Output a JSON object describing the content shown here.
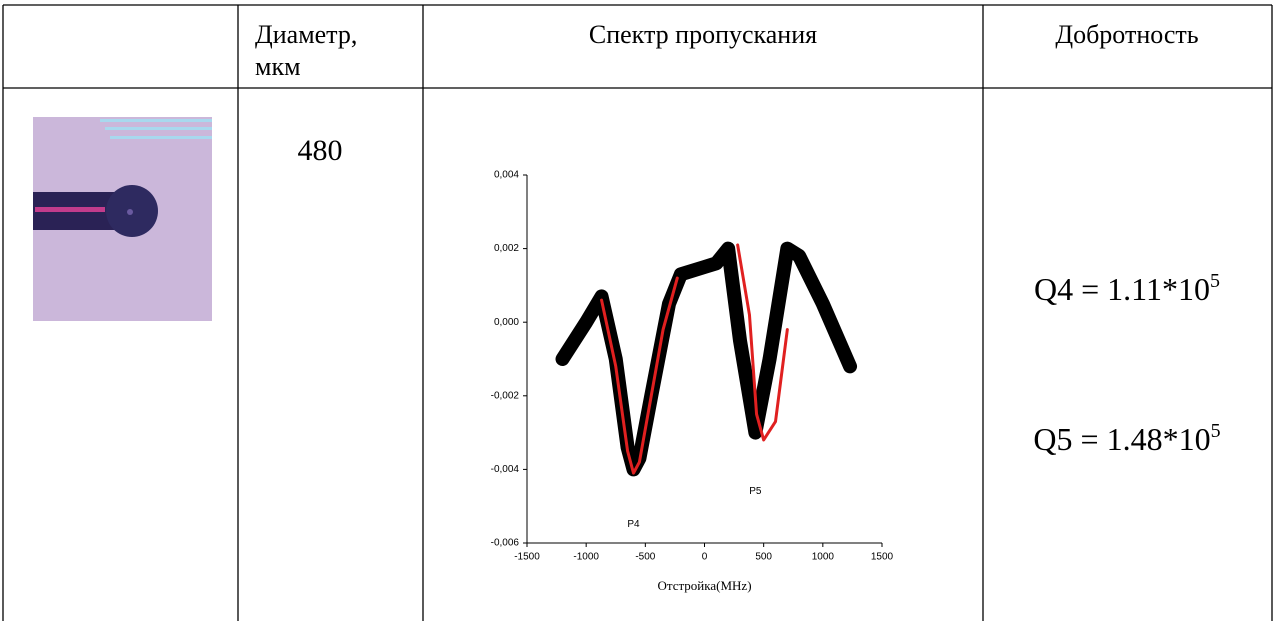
{
  "table": {
    "header": [
      "Диаметр,",
      "мкм",
      "Спектр пропускания",
      "Добротность"
    ],
    "diameter": "480",
    "quality": [
      {
        "base": "Q4 = 1.11*10",
        "exponent": "5"
      },
      {
        "base": "Q5 = 1.48*10",
        "exponent": "5"
      }
    ]
  },
  "chart_data": {
    "type": "line",
    "x_label": "Отстройка(MHz)",
    "xlim": [
      -1500,
      1500
    ],
    "xticks": [
      -1500,
      -1000,
      -500,
      0,
      500,
      1000,
      1500
    ],
    "ylim": [
      -0.006,
      0.004
    ],
    "yticks": [
      {
        "value": -0.006,
        "label": "-0,006"
      },
      {
        "value": -0.004,
        "label": "-0,004"
      },
      {
        "value": -0.002,
        "label": "-0,002"
      },
      {
        "value": 0,
        "label": "0,000"
      },
      {
        "value": 0.002,
        "label": "0,002"
      },
      {
        "value": 0.004,
        "label": "0,004"
      }
    ],
    "series": [
      {
        "color": "#000000",
        "x": [
          -1200,
          -1000,
          -870,
          -750,
          -650,
          -600,
          -550,
          -450,
          -300,
          -200,
          0,
          100,
          200,
          300,
          430,
          550,
          700,
          800,
          1000,
          1230
        ],
        "values": [
          -0.001,
          0.0,
          0.0007,
          -0.001,
          -0.0034,
          -0.004,
          -0.0037,
          -0.002,
          0.0005,
          0.0013,
          0.0015,
          0.0016,
          0.002,
          -0.0005,
          -0.003,
          -0.001,
          0.002,
          0.0018,
          0.0005,
          -0.0012
        ]
      },
      {
        "color": "#e02020",
        "x": [
          -870,
          -750,
          -650,
          -600,
          -550,
          -450,
          -350,
          -230,
          170,
          280,
          380,
          440,
          500,
          600,
          700
        ],
        "values": [
          0.0006,
          -0.0012,
          -0.0035,
          -0.0041,
          -0.0038,
          -0.002,
          -0.0002,
          0.0012,
          null,
          0.0021,
          0.0002,
          -0.0025,
          -0.0032,
          -0.0027,
          -0.0002
        ]
      }
    ],
    "annotations": [
      {
        "text": "P4",
        "x": -600,
        "y": -0.0055
      },
      {
        "text": "P5",
        "x": 430,
        "y": -0.0046
      }
    ]
  }
}
